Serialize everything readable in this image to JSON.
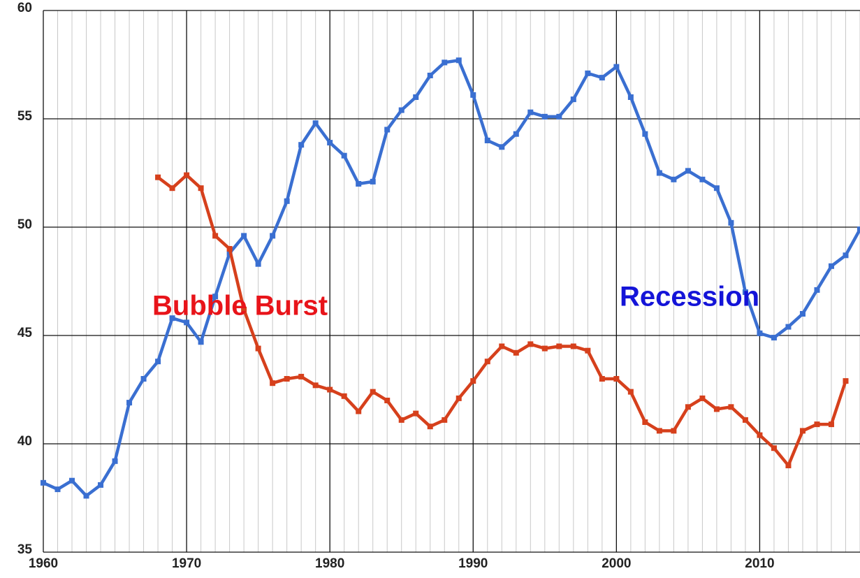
{
  "chart_data": {
    "type": "line",
    "x": [
      1960,
      1961,
      1962,
      1963,
      1964,
      1965,
      1966,
      1967,
      1968,
      1969,
      1970,
      1971,
      1972,
      1973,
      1974,
      1975,
      1976,
      1977,
      1978,
      1979,
      1980,
      1981,
      1982,
      1983,
      1984,
      1985,
      1986,
      1987,
      1988,
      1989,
      1990,
      1991,
      1992,
      1993,
      1994,
      1995,
      1996,
      1997,
      1998,
      1999,
      2000,
      2001,
      2002,
      2003,
      2004,
      2005,
      2006,
      2007,
      2008,
      2009,
      2010,
      2011,
      2012,
      2013,
      2014,
      2015,
      2016,
      2017
    ],
    "series": [
      {
        "color": "#3a6fd1",
        "values": [
          38.2,
          37.9,
          38.3,
          37.6,
          38.1,
          39.2,
          41.9,
          43.0,
          43.8,
          45.8,
          45.6,
          44.7,
          46.8,
          48.8,
          49.6,
          48.3,
          49.6,
          51.2,
          53.8,
          54.8,
          53.9,
          53.3,
          52.0,
          52.1,
          54.5,
          55.4,
          56.0,
          57.0,
          57.6,
          57.7,
          56.1,
          54.0,
          53.7,
          54.3,
          55.3,
          55.1,
          55.1,
          55.9,
          57.1,
          56.9,
          57.4,
          56.0,
          54.3,
          52.5,
          52.2,
          52.6,
          52.2,
          51.8,
          50.2,
          47.0,
          45.1,
          44.9,
          45.4,
          46.0,
          47.1,
          48.2,
          48.7,
          49.9
        ]
      },
      {
        "color": "#d6401c",
        "values": [
          null,
          null,
          null,
          null,
          null,
          null,
          null,
          null,
          52.3,
          51.8,
          52.4,
          51.8,
          49.6,
          49.0,
          46.2,
          44.4,
          42.8,
          43.0,
          43.1,
          42.7,
          42.5,
          42.2,
          41.5,
          42.4,
          42.0,
          41.1,
          41.4,
          40.8,
          41.1,
          42.1,
          42.9,
          43.8,
          44.5,
          44.2,
          44.6,
          44.4,
          44.5,
          44.5,
          44.3,
          43.0,
          43.0,
          42.4,
          41.0,
          40.6,
          40.6,
          41.7,
          42.1,
          41.6,
          41.7,
          41.1,
          40.4,
          39.8,
          39.0,
          40.6,
          40.9,
          40.9,
          42.9,
          null
        ]
      }
    ],
    "annotations": [
      {
        "text": "Bubble Burst",
        "color": "#e8141a"
      },
      {
        "text": "Recession",
        "color": "#1414d8"
      }
    ],
    "xlim": [
      1960,
      2017
    ],
    "xticks": [
      1960,
      1970,
      1980,
      1990,
      2000,
      2010
    ],
    "ylim": [
      35,
      60
    ],
    "yticks": [
      35,
      40,
      45,
      50,
      55,
      60
    ],
    "grid": true
  }
}
